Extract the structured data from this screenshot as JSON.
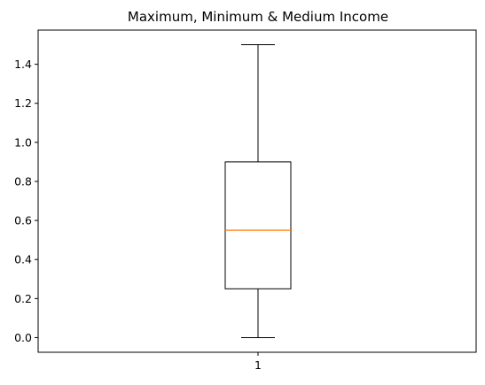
{
  "chart_data": {
    "type": "box",
    "title": "Maximum, Minimum & Medium Income",
    "xlabel": "",
    "ylabel": "",
    "categories": [
      "1"
    ],
    "ylim": [
      -0.075,
      1.575
    ],
    "yticks": [
      "0.0",
      "0.2",
      "0.4",
      "0.6",
      "0.8",
      "1.0",
      "1.2",
      "1.4"
    ],
    "box": {
      "whisker_low": 0.0,
      "q1": 0.25,
      "median": 0.55,
      "q3": 0.9,
      "whisker_high": 1.5
    },
    "grid": false,
    "colors": {
      "box": "#000000",
      "median": "#ff7f0e"
    }
  }
}
